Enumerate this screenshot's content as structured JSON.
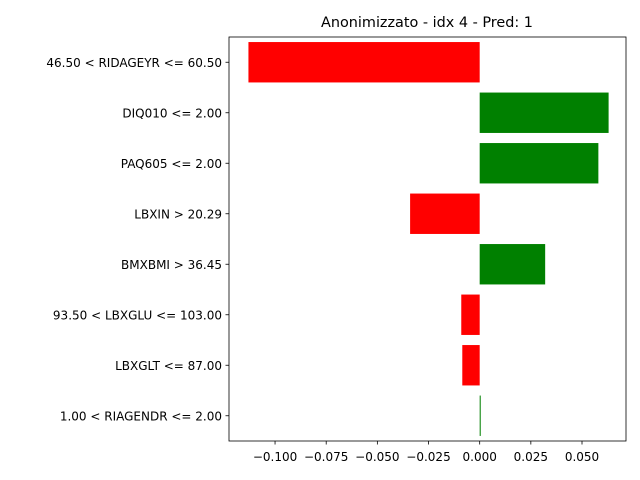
{
  "chart_data": {
    "type": "bar",
    "orientation": "horizontal",
    "title": "Anonimizzato - idx 4 - Pred: 1",
    "xlabel": "",
    "ylabel": "",
    "xlim": [
      -0.1225,
      0.0715
    ],
    "xticks": [
      -0.1,
      -0.075,
      -0.05,
      -0.025,
      0.0,
      0.025,
      0.05
    ],
    "xtick_labels": [
      "−0.100",
      "−0.075",
      "−0.050",
      "−0.025",
      "0.000",
      "0.025",
      "0.050"
    ],
    "grid": false,
    "colors": {
      "positive": "#008000",
      "negative": "#ff0000"
    },
    "categories": [
      "46.50 < RIDAGEYR <= 60.50",
      "DIQ010 <= 2.00",
      "PAQ605 <= 2.00",
      "LBXIN > 20.29",
      "BMXBMI > 36.45",
      "93.50 < LBXGLU <= 103.00",
      "LBXGLT <= 87.00",
      "1.00 < RIAGENDR <= 2.00"
    ],
    "values": [
      -0.113,
      0.063,
      0.058,
      -0.034,
      0.032,
      -0.009,
      -0.0085,
      0.0005
    ]
  }
}
